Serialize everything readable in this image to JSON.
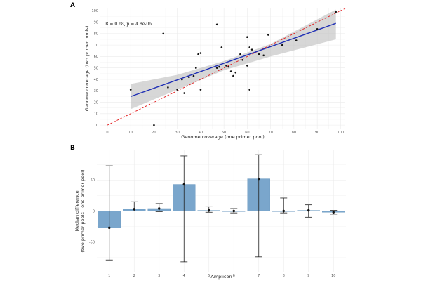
{
  "chart_data": [
    {
      "panel": "A",
      "type": "scatter",
      "xlabel": "Genome coverage (one primer pool)",
      "ylabel": "Genome coverage (two primer pools)",
      "xlim": [
        -3,
        102
      ],
      "ylim": [
        -3,
        102
      ],
      "xticks": [
        "0",
        "10",
        "20",
        "30",
        "40",
        "50",
        "60",
        "70",
        "80",
        "90",
        "100"
      ],
      "yticks": [
        "0",
        "10",
        "20",
        "30",
        "40",
        "50",
        "60",
        "70",
        "80",
        "90",
        "100"
      ],
      "annotation": "R = 0.68, p = 4.8e-06",
      "points": [
        [
          10,
          31
        ],
        [
          20,
          0
        ],
        [
          24,
          80
        ],
        [
          26,
          33
        ],
        [
          30,
          31
        ],
        [
          32,
          40
        ],
        [
          33,
          28
        ],
        [
          35,
          42
        ],
        [
          37,
          43
        ],
        [
          38,
          50
        ],
        [
          39,
          62
        ],
        [
          40,
          63
        ],
        [
          40,
          31
        ],
        [
          47,
          88
        ],
        [
          47,
          50
        ],
        [
          48,
          51
        ],
        [
          49,
          68
        ],
        [
          51,
          52
        ],
        [
          52,
          51
        ],
        [
          53,
          47
        ],
        [
          54,
          43
        ],
        [
          55,
          46
        ],
        [
          57,
          62
        ],
        [
          58,
          57
        ],
        [
          60,
          77
        ],
        [
          60,
          52
        ],
        [
          61,
          68
        ],
        [
          61,
          31
        ],
        [
          62,
          66
        ],
        [
          65,
          62
        ],
        [
          67,
          61
        ],
        [
          69,
          79
        ],
        [
          75,
          70
        ],
        [
          81,
          74
        ],
        [
          90,
          84
        ],
        [
          98,
          99
        ]
      ],
      "fit": {
        "x0": 10,
        "y0": 25,
        "x1": 98,
        "y1": 89
      },
      "ci_band": {
        "x": [
          10,
          30,
          50,
          70,
          98
        ],
        "upper": [
          36,
          44,
          56,
          71,
          101
        ],
        "lower": [
          14,
          31,
          48,
          60,
          75
        ]
      },
      "identity_line": {
        "from": [
          0,
          0
        ],
        "to": [
          102,
          102
        ]
      }
    },
    {
      "panel": "B",
      "type": "bar",
      "xlabel": "Amplicon",
      "ylabel": "Median difference\n(two primer pools - one primer pool)",
      "ylim": [
        -98,
        98
      ],
      "yticks": [
        -50,
        0,
        50
      ],
      "categories": [
        "1",
        "2",
        "3",
        "4",
        "5",
        "6",
        "7",
        "8",
        "9",
        "10"
      ],
      "values": [
        -27,
        3,
        4,
        43,
        1,
        0,
        52,
        0,
        1,
        -2
      ],
      "errors": [
        [
          -79,
          73
        ],
        [
          0,
          15
        ],
        [
          -1,
          12
        ],
        [
          -82,
          89
        ],
        [
          -2,
          7
        ],
        [
          -3,
          4
        ],
        [
          -74,
          91
        ],
        [
          -3,
          21
        ],
        [
          -10,
          10
        ],
        [
          -5,
          1
        ]
      ]
    }
  ]
}
